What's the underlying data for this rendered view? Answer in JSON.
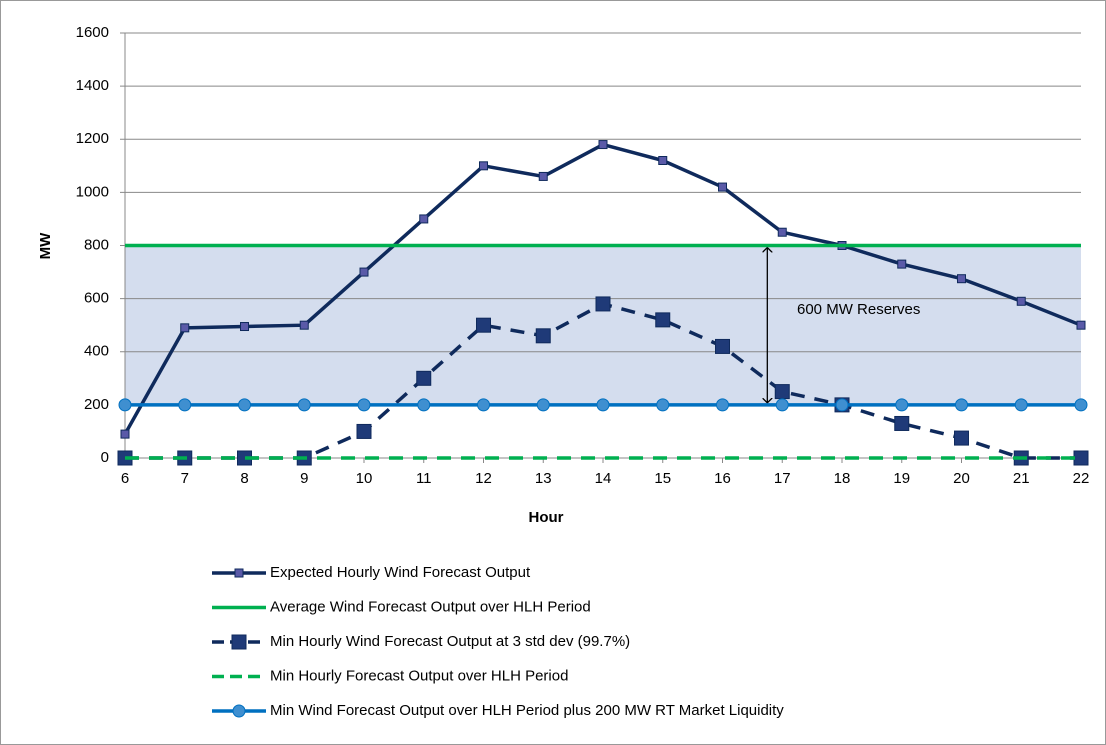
{
  "chart_data": {
    "type": "line",
    "x_label": "Hour",
    "y_label": "MW",
    "xlim": [
      6,
      22
    ],
    "xticks": [
      6,
      7,
      8,
      9,
      10,
      11,
      12,
      13,
      14,
      15,
      16,
      17,
      18,
      19,
      20,
      21,
      22
    ],
    "ylim": [
      0,
      1600
    ],
    "yticks": [
      0,
      200,
      400,
      600,
      800,
      1000,
      1200,
      1400,
      1600
    ],
    "grid": true,
    "legend": "bottom",
    "shaded_range": {
      "values": [
        200,
        800
      ],
      "color": "#d4ddee"
    },
    "annotation": "600 MW  Reserves",
    "x": [
      6,
      7,
      8,
      9,
      10,
      11,
      12,
      13,
      14,
      15,
      16,
      17,
      18,
      19,
      20,
      21,
      22
    ],
    "series": [
      {
        "name": "Expected Hourly Wind Forecast Output",
        "color": "#0f2a5c",
        "marker": "square-small",
        "marker_color": "#5a5aa8",
        "dash": false,
        "values": [
          90,
          490,
          495,
          500,
          700,
          900,
          1100,
          1060,
          1180,
          1120,
          1020,
          850,
          800,
          730,
          675,
          590,
          500
        ]
      },
      {
        "name": "Average Wind Forecast Output over HLH Period",
        "color": "#00b050",
        "marker": "none",
        "dash": false,
        "values": [
          800,
          800,
          800,
          800,
          800,
          800,
          800,
          800,
          800,
          800,
          800,
          800,
          800,
          800,
          800,
          800,
          800
        ]
      },
      {
        "name": "Min Hourly Wind Forecast Output at 3 std dev (99.7%)",
        "color": "#0f2a5c",
        "marker": "square-large",
        "marker_color": "#1f3a78",
        "dash": true,
        "values": [
          0,
          0,
          0,
          0,
          100,
          300,
          500,
          460,
          580,
          520,
          420,
          250,
          200,
          130,
          75,
          0,
          0
        ]
      },
      {
        "name": "Min Hourly Forecast Output over HLH Period",
        "color": "#00b050",
        "marker": "none",
        "dash": true,
        "values": [
          0,
          0,
          0,
          0,
          0,
          0,
          0,
          0,
          0,
          0,
          0,
          0,
          0,
          0,
          0,
          0,
          0
        ]
      },
      {
        "name": "Min Wind Forecast Output over HLH Period plus 200 MW RT Market Liquidity",
        "color": "#0070c0",
        "marker": "circle",
        "marker_color": "#3f8fd0",
        "dash": false,
        "values": [
          200,
          200,
          200,
          200,
          200,
          200,
          200,
          200,
          200,
          200,
          200,
          200,
          200,
          200,
          200,
          200,
          200
        ]
      }
    ]
  }
}
